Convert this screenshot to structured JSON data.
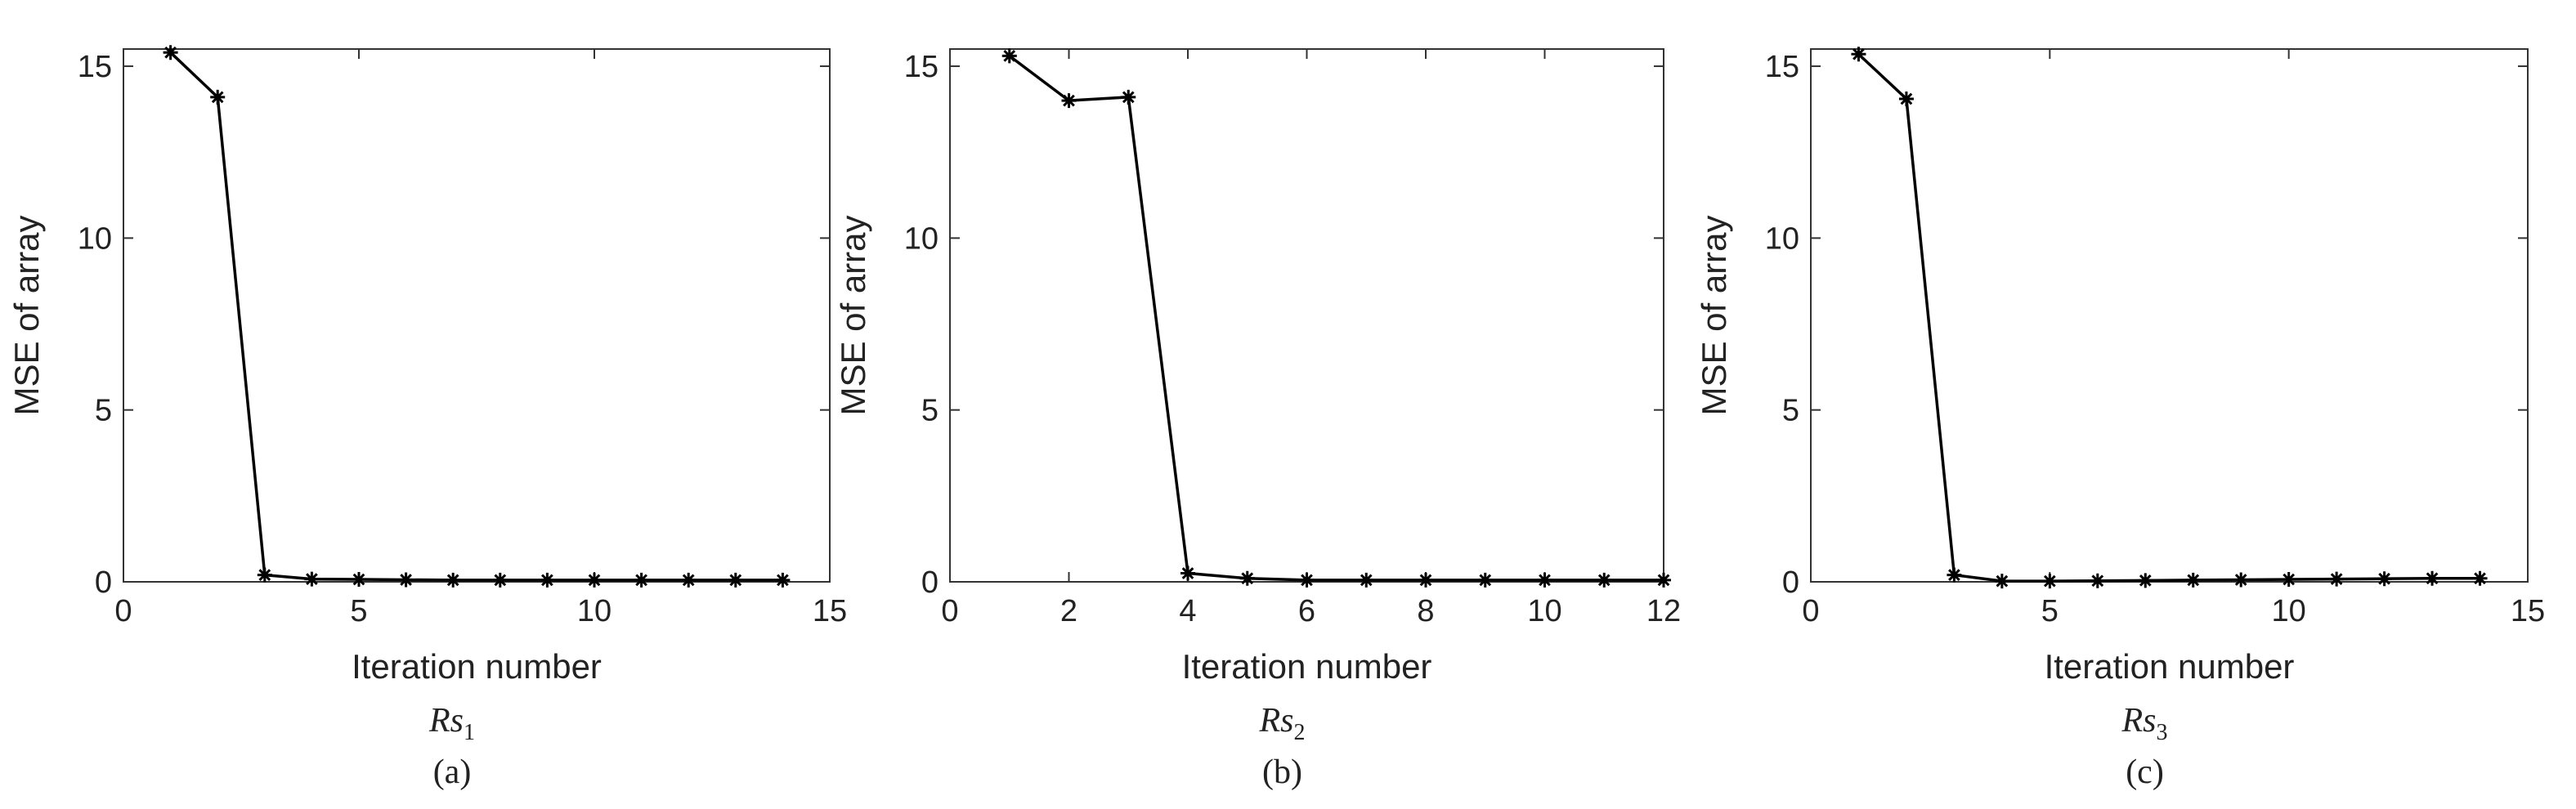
{
  "chart_data": [
    {
      "type": "line",
      "xlabel": "Iteration number",
      "ylabel": "MSE of array",
      "caption": {
        "main": "Rs",
        "sub": "1"
      },
      "label": "(a)",
      "xlim": [
        0,
        15
      ],
      "xticks": [
        0,
        5,
        10,
        15
      ],
      "ylim": [
        0,
        15.5
      ],
      "yticks": [
        0,
        5,
        10,
        15
      ],
      "x": [
        1,
        2,
        3,
        4,
        5,
        6,
        7,
        8,
        9,
        10,
        11,
        12,
        13,
        14
      ],
      "series": [
        {
          "color": "#000000",
          "values": [
            15.4,
            14.1,
            0.2,
            0.08,
            0.07,
            0.06,
            0.05,
            0.05,
            0.05,
            0.05,
            0.05,
            0.05,
            0.05,
            0.05
          ]
        }
      ]
    },
    {
      "type": "line",
      "xlabel": "Iteration number",
      "ylabel": "MSE of array",
      "caption": {
        "main": "Rs",
        "sub": "2"
      },
      "label": "(b)",
      "xlim": [
        0,
        12
      ],
      "xticks": [
        0,
        2,
        4,
        6,
        8,
        10,
        12
      ],
      "ylim": [
        0,
        15.5
      ],
      "yticks": [
        0,
        5,
        10,
        15
      ],
      "x": [
        1,
        2,
        3,
        4,
        5,
        6,
        7,
        8,
        9,
        10,
        11,
        12
      ],
      "series": [
        {
          "color": "#000000",
          "values": [
            15.3,
            14.0,
            14.1,
            0.25,
            0.1,
            0.05,
            0.05,
            0.05,
            0.05,
            0.05,
            0.05,
            0.05
          ]
        }
      ]
    },
    {
      "type": "line",
      "xlabel": "Iteration number",
      "ylabel": "MSE of array",
      "caption": {
        "main": "Rs",
        "sub": "3"
      },
      "label": "(c)",
      "xlim": [
        0,
        15
      ],
      "xticks": [
        0,
        5,
        10,
        15
      ],
      "ylim": [
        0,
        15.5
      ],
      "yticks": [
        0,
        5,
        10,
        15
      ],
      "x": [
        1,
        2,
        3,
        4,
        5,
        6,
        7,
        8,
        9,
        10,
        11,
        12,
        13,
        14
      ],
      "series": [
        {
          "color": "#000000",
          "values": [
            15.35,
            14.05,
            0.2,
            0.02,
            0.02,
            0.03,
            0.04,
            0.05,
            0.06,
            0.07,
            0.08,
            0.09,
            0.1,
            0.1
          ]
        }
      ]
    }
  ]
}
